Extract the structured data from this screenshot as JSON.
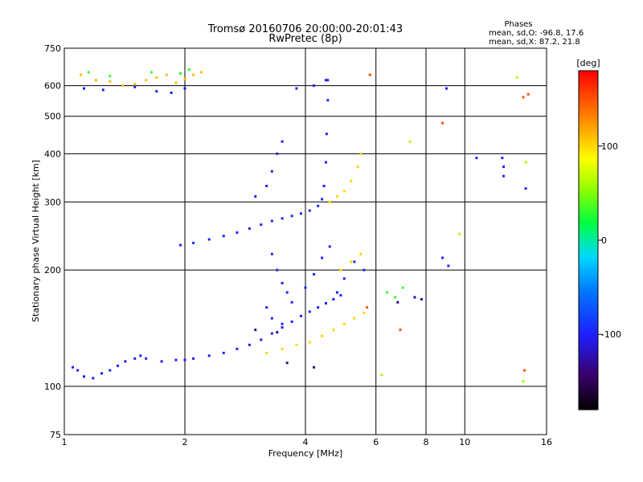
{
  "chart_data": {
    "type": "scatter",
    "title": "Tromsø 20160706 20:00:00-20:01:43",
    "subtitle": "RwPretec (8p)",
    "xlabel": "Frequency [MHz]",
    "ylabel": "Stationary phase Virtual Height [km]",
    "x_scale": "log",
    "y_scale": "log",
    "xlim": [
      1,
      16
    ],
    "ylim": [
      75,
      750
    ],
    "x_ticks": [
      1,
      2,
      4,
      6,
      8,
      10,
      16
    ],
    "x_tick_labels": [
      "1",
      "2",
      "4",
      "6",
      "8",
      "10",
      "16"
    ],
    "y_ticks": [
      75,
      100,
      200,
      300,
      400,
      500,
      600,
      750
    ],
    "y_tick_labels": [
      "75",
      "100",
      "200",
      "300",
      "400",
      "500",
      "600",
      "750"
    ],
    "grid": true,
    "stats_panel": {
      "heading": "Phases",
      "line1": "mean, sd,O: -96.8, 17.6",
      "line2": "mean, sd,X:  87.2, 21.8"
    },
    "colorbar": {
      "label": "[deg]",
      "range": [
        -180,
        180
      ],
      "ticks": [
        100,
        0,
        -100
      ],
      "tick_labels": [
        "100",
        "0",
        "-100"
      ]
    },
    "series_clusters": [
      {
        "phase": -100,
        "points": [
          [
            1.05,
            112
          ],
          [
            1.08,
            110
          ],
          [
            1.12,
            106
          ],
          [
            1.18,
            105
          ],
          [
            1.24,
            108
          ],
          [
            1.3,
            110
          ],
          [
            1.36,
            113
          ],
          [
            1.42,
            116
          ],
          [
            1.5,
            118
          ],
          [
            1.55,
            120
          ],
          [
            1.6,
            118
          ],
          [
            1.75,
            116
          ],
          [
            1.9,
            117
          ],
          [
            2.0,
            117
          ],
          [
            2.1,
            118
          ],
          [
            2.3,
            120
          ],
          [
            2.5,
            122
          ],
          [
            2.7,
            125
          ],
          [
            2.9,
            128
          ],
          [
            3.1,
            132
          ],
          [
            3.3,
            137
          ],
          [
            3.5,
            142
          ],
          [
            3.7,
            147
          ],
          [
            3.9,
            152
          ],
          [
            4.1,
            156
          ],
          [
            4.3,
            160
          ],
          [
            4.5,
            164
          ],
          [
            4.7,
            168
          ],
          [
            4.9,
            172
          ]
        ]
      },
      {
        "phase": -95,
        "points": [
          [
            1.95,
            232
          ],
          [
            2.1,
            235
          ],
          [
            2.3,
            240
          ],
          [
            2.5,
            245
          ],
          [
            2.7,
            250
          ],
          [
            2.9,
            256
          ],
          [
            3.1,
            262
          ],
          [
            3.3,
            268
          ],
          [
            3.5,
            272
          ],
          [
            3.7,
            276
          ],
          [
            3.9,
            280
          ],
          [
            4.1,
            285
          ],
          [
            4.3,
            293
          ],
          [
            4.4,
            305
          ],
          [
            4.45,
            330
          ],
          [
            4.5,
            380
          ],
          [
            4.52,
            450
          ],
          [
            4.55,
            550
          ],
          [
            4.55,
            620
          ]
        ]
      },
      {
        "phase": -98,
        "points": [
          [
            3.0,
            310
          ],
          [
            3.2,
            330
          ],
          [
            3.3,
            360
          ],
          [
            3.4,
            400
          ],
          [
            3.5,
            430
          ],
          [
            3.3,
            220
          ],
          [
            3.4,
            200
          ],
          [
            3.5,
            185
          ],
          [
            3.6,
            175
          ],
          [
            3.7,
            165
          ],
          [
            3.2,
            160
          ],
          [
            3.3,
            150
          ],
          [
            3.5,
            145
          ],
          [
            4.0,
            180
          ],
          [
            4.2,
            195
          ],
          [
            4.4,
            215
          ],
          [
            4.6,
            230
          ],
          [
            4.8,
            175
          ],
          [
            5.0,
            190
          ],
          [
            5.3,
            210
          ],
          [
            5.6,
            200
          ]
        ]
      },
      {
        "phase": 100,
        "points": [
          [
            3.2,
            122
          ],
          [
            3.5,
            125
          ],
          [
            3.8,
            128
          ],
          [
            4.1,
            130
          ],
          [
            4.4,
            135
          ],
          [
            4.7,
            140
          ],
          [
            5.0,
            145
          ],
          [
            5.3,
            150
          ],
          [
            5.6,
            155
          ],
          [
            4.6,
            300
          ],
          [
            4.8,
            310
          ],
          [
            5.0,
            320
          ],
          [
            5.2,
            340
          ],
          [
            5.4,
            370
          ],
          [
            5.5,
            400
          ],
          [
            4.9,
            200
          ],
          [
            5.2,
            210
          ],
          [
            5.5,
            220
          ]
        ]
      },
      {
        "phase": 110,
        "points": [
          [
            1.1,
            640
          ],
          [
            1.2,
            620
          ],
          [
            1.3,
            615
          ],
          [
            1.4,
            600
          ],
          [
            1.5,
            605
          ],
          [
            1.6,
            620
          ],
          [
            1.7,
            630
          ],
          [
            1.8,
            640
          ],
          [
            1.9,
            610
          ],
          [
            2.0,
            625
          ],
          [
            2.1,
            640
          ],
          [
            2.2,
            650
          ]
        ]
      },
      {
        "phase": -100,
        "points": [
          [
            1.12,
            590
          ],
          [
            1.25,
            585
          ],
          [
            1.5,
            595
          ],
          [
            1.7,
            580
          ],
          [
            1.85,
            575
          ],
          [
            2.0,
            590
          ],
          [
            3.8,
            590
          ],
          [
            4.2,
            600
          ],
          [
            4.5,
            620
          ]
        ]
      },
      {
        "phase": 30,
        "points": [
          [
            1.15,
            650
          ],
          [
            1.3,
            635
          ],
          [
            1.65,
            650
          ],
          [
            1.95,
            645
          ],
          [
            2.05,
            660
          ],
          [
            6.4,
            175
          ],
          [
            6.7,
            170
          ],
          [
            7.0,
            180
          ]
        ]
      },
      {
        "phase": -130,
        "points": [
          [
            3.6,
            115
          ],
          [
            4.2,
            112
          ],
          [
            3.0,
            140
          ],
          [
            3.4,
            138
          ],
          [
            6.8,
            165
          ],
          [
            7.5,
            170
          ],
          [
            7.8,
            168
          ]
        ]
      },
      {
        "phase": -100,
        "points": [
          [
            8.8,
            215
          ],
          [
            9.1,
            205
          ],
          [
            12.5,
            350
          ],
          [
            12.5,
            370
          ],
          [
            10.7,
            390
          ],
          [
            12.4,
            390
          ],
          [
            9.0,
            590
          ],
          [
            14.2,
            325
          ]
        ]
      },
      {
        "phase": 150,
        "points": [
          [
            5.8,
            640
          ],
          [
            5.7,
            160
          ],
          [
            6.9,
            140
          ],
          [
            8.8,
            480
          ],
          [
            14.0,
            560
          ],
          [
            14.1,
            110
          ],
          [
            14.4,
            570
          ]
        ]
      },
      {
        "phase": 60,
        "points": [
          [
            7.3,
            430
          ],
          [
            6.2,
            107
          ],
          [
            9.7,
            248
          ],
          [
            14.2,
            380
          ],
          [
            13.5,
            630
          ],
          [
            14.0,
            103
          ]
        ]
      }
    ]
  }
}
